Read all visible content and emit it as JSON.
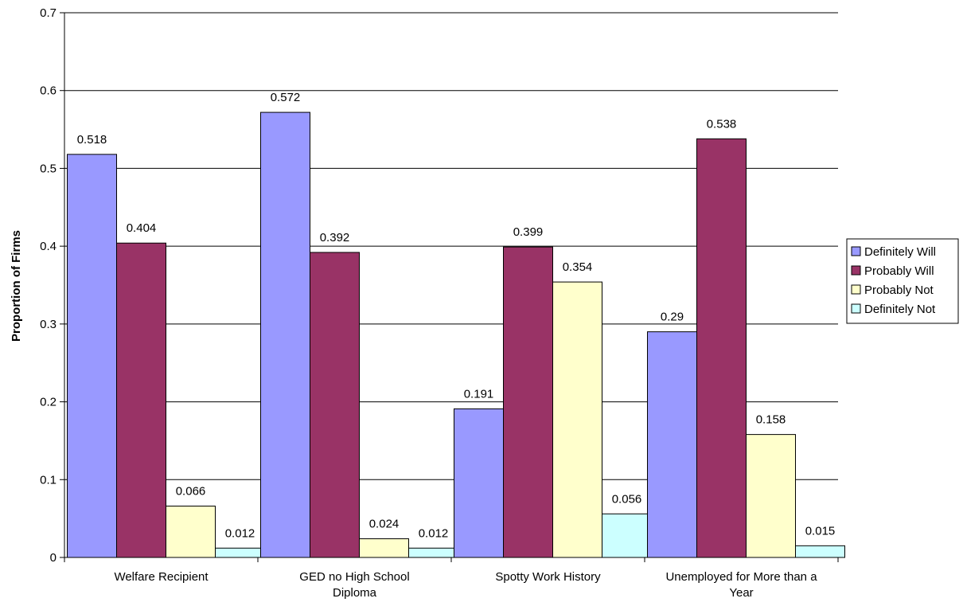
{
  "chart_data": {
    "type": "bar",
    "title": "",
    "xlabel": "",
    "ylabel": "Proportion of Firms",
    "ylim": [
      0,
      0.7
    ],
    "yticks": [
      "0",
      "0.1",
      "0.2",
      "0.3",
      "0.4",
      "0.5",
      "0.6",
      "0.7"
    ],
    "grid": true,
    "legend_position": "right",
    "categories": [
      [
        "Welfare Recipient"
      ],
      [
        "GED no High School",
        "Diploma"
      ],
      [
        "Spotty Work History"
      ],
      [
        "Unemployed for More than a",
        "Year"
      ]
    ],
    "series": [
      {
        "name": "Definitely Will",
        "color": "#9999FF",
        "values": [
          0.518,
          0.572,
          0.191,
          0.29
        ],
        "labels": [
          "0.518",
          "0.572",
          "0.191",
          "0.29"
        ]
      },
      {
        "name": "Probably Will",
        "color": "#993366",
        "values": [
          0.404,
          0.392,
          0.399,
          0.538
        ],
        "labels": [
          "0.404",
          "0.392",
          "0.399",
          "0.538"
        ]
      },
      {
        "name": "Probably Not",
        "color": "#FFFFCC",
        "values": [
          0.066,
          0.024,
          0.354,
          0.158
        ],
        "labels": [
          "0.066",
          "0.024",
          "0.354",
          "0.158"
        ]
      },
      {
        "name": "Definitely Not",
        "color": "#CCFFFF",
        "values": [
          0.012,
          0.012,
          0.056,
          0.015
        ],
        "labels": [
          "0.012",
          "0.012",
          "0.056",
          "0.015"
        ]
      }
    ]
  }
}
